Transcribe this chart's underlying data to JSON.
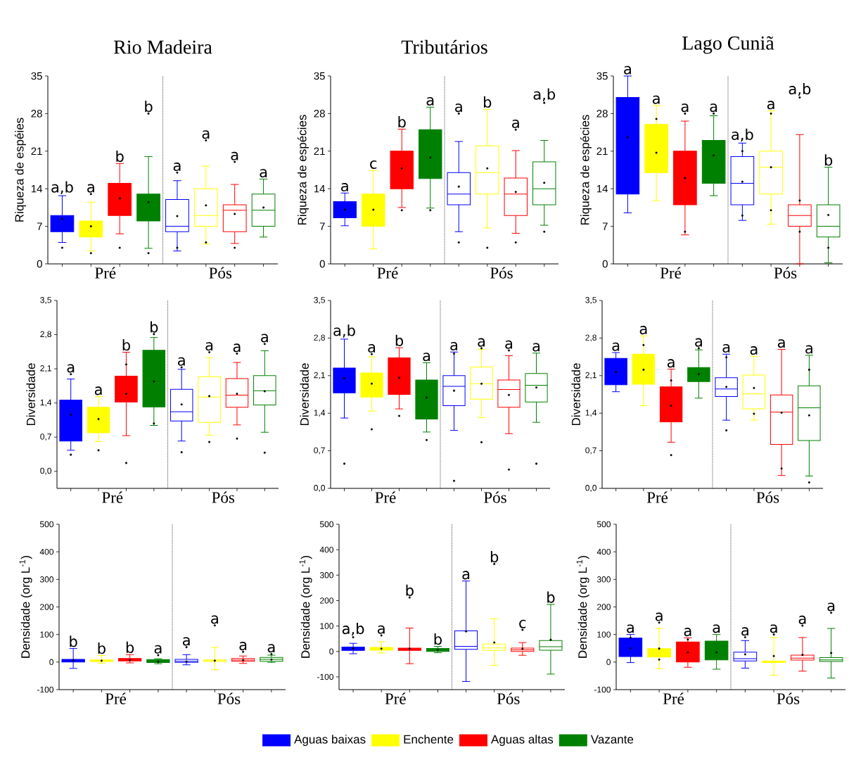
{
  "chart_data": [
    {
      "type": "box",
      "title": "Rio Madeira",
      "ylabel": "Riqueza de espéies",
      "categories": [
        "Pré",
        "Pós"
      ],
      "ylim": [
        0,
        35
      ],
      "yticks": [
        0,
        7,
        14,
        21,
        28,
        35
      ],
      "series": [
        {
          "color": "#0000ff",
          "value_labels": [
            "a,b",
            "a"
          ],
          "boxes": [
            {
              "low": 4.0,
              "q1": 6.0,
              "median": 8.0,
              "q3": 9.0,
              "high": 12.7,
              "mean": 8.4,
              "outliers": [
                3.0
              ]
            },
            {
              "low": 2.4,
              "q1": 6.0,
              "median": 7.0,
              "q3": 12.0,
              "high": 15.5,
              "mean": 8.9,
              "outliers": [
                17.0,
                3.0
              ]
            }
          ]
        },
        {
          "color": "#ffff00",
          "value_labels": [
            "a",
            "a"
          ],
          "boxes": [
            {
              "low": 2.4,
              "q1": 5.0,
              "median": 7.0,
              "q3": 8.0,
              "high": 11.5,
              "mean": 7.0,
              "outliers": [
                13.0,
                2.0
              ]
            },
            {
              "low": 3.7,
              "q1": 7.0,
              "median": 9.0,
              "q3": 14.0,
              "high": 18.2,
              "mean": 10.9,
              "outliers": [
                23.0,
                4.0
              ]
            }
          ]
        },
        {
          "color": "#ff0000",
          "value_labels": [
            "b",
            "a"
          ],
          "boxes": [
            {
              "low": 5.6,
              "q1": 9.0,
              "median": 12.0,
              "q3": 15.0,
              "high": 18.7,
              "mean": 12.2,
              "outliers": [
                3.0
              ]
            },
            {
              "low": 3.8,
              "q1": 6.0,
              "median": 10.0,
              "q3": 11.0,
              "high": 14.8,
              "mean": 9.3,
              "outliers": [
                19.0,
                3.0
              ]
            }
          ]
        },
        {
          "color": "#008000",
          "value_labels": [
            "b",
            "a"
          ],
          "boxes": [
            {
              "low": 2.9,
              "q1": 8.0,
              "median": 11.0,
              "q3": 13.0,
              "high": 20.0,
              "mean": 11.5,
              "outliers": [
                28.0,
                2.0
              ]
            },
            {
              "low": 5.0,
              "q1": 7.0,
              "median": 10.0,
              "q3": 13.0,
              "high": 15.8,
              "mean": 10.5
            }
          ]
        }
      ]
    },
    {
      "type": "box",
      "title": "Tributários",
      "ylabel": "Riqueza de espécies",
      "categories": [
        "Pré",
        "Pós"
      ],
      "ylim": [
        0,
        35
      ],
      "yticks": [
        0,
        7,
        14,
        21,
        28,
        35
      ],
      "series": [
        {
          "color": "#0000ff",
          "value_labels": [
            "a",
            "a"
          ],
          "boxes": [
            {
              "low": 7.1,
              "q1": 8.6,
              "median": 10.1,
              "q3": 11.6,
              "high": 13.2,
              "mean": 10.1
            },
            {
              "low": 6.0,
              "q1": 11.0,
              "median": 13.0,
              "q3": 17.0,
              "high": 22.8,
              "mean": 14.4,
              "outliers": [
                28.0,
                4.0
              ]
            }
          ]
        },
        {
          "color": "#ffff00",
          "value_labels": [
            "c",
            "b"
          ],
          "boxes": [
            {
              "low": 2.8,
              "q1": 7.0,
              "median": 10.0,
              "q3": 13.0,
              "high": 17.4,
              "mean": 10.1
            },
            {
              "low": 6.7,
              "q1": 13.0,
              "median": 17.0,
              "q3": 22.0,
              "high": 28.8,
              "mean": 17.8,
              "outliers": [
                3.0
              ]
            }
          ]
        },
        {
          "color": "#ff0000",
          "value_labels": [
            "b",
            "a"
          ],
          "boxes": [
            {
              "low": 10.5,
              "q1": 14.0,
              "median": 17.8,
              "q3": 21.0,
              "high": 25.1,
              "mean": 17.8,
              "outliers": [
                10.0
              ]
            },
            {
              "low": 5.7,
              "q1": 9.0,
              "median": 13.0,
              "q3": 16.0,
              "high": 21.1,
              "mean": 13.4,
              "outliers": [
                25.0,
                4.0
              ]
            }
          ]
        },
        {
          "color": "#008000",
          "value_labels": [
            "a",
            "a,b"
          ],
          "boxes": [
            {
              "low": 10.4,
              "q1": 15.9,
              "median": 20.0,
              "q3": 25.0,
              "high": 29.2,
              "mean": 19.8,
              "outliers": [
                10.0
              ]
            },
            {
              "low": 7.2,
              "q1": 11.0,
              "median": 14.0,
              "q3": 19.0,
              "high": 23.0,
              "mean": 15.1,
              "outliers": [
                30.0,
                6.0
              ]
            }
          ]
        }
      ]
    },
    {
      "type": "box",
      "title": "Lago Cuniã",
      "ylabel": "Riqueza de espécies",
      "categories": [
        "Pré",
        "Pós"
      ],
      "ylim": [
        0,
        35
      ],
      "yticks": [
        0,
        7,
        14,
        21,
        28,
        35
      ],
      "series": [
        {
          "color": "#0000ff",
          "value_labels": [
            "a",
            "a,b"
          ],
          "boxes": [
            {
              "low": 9.5,
              "q1": 13.0,
              "median": 23.6,
              "q3": 31.0,
              "high": 35.0,
              "mean": 23.6
            },
            {
              "low": 8.1,
              "q1": 11.0,
              "median": 15.0,
              "q3": 20.0,
              "high": 22.5,
              "mean": 15.3,
              "outliers": [
                21.0,
                9.0
              ]
            }
          ]
        },
        {
          "color": "#ffff00",
          "value_labels": [
            "a",
            "a"
          ],
          "boxes": [
            {
              "low": 11.8,
              "q1": 17.0,
              "median": 20.7,
              "q3": 26.0,
              "high": 29.5,
              "mean": 20.7,
              "outliers": [
                27.0
              ]
            },
            {
              "low": 7.4,
              "q1": 13.0,
              "median": 18.0,
              "q3": 21.0,
              "high": 28.5,
              "mean": 18.0,
              "outliers": [
                28.0,
                10.0
              ]
            }
          ]
        },
        {
          "color": "#ff0000",
          "value_labels": [
            "a",
            "a,b"
          ],
          "boxes": [
            {
              "low": 5.4,
              "q1": 11.0,
              "median": 16.0,
              "q3": 21.0,
              "high": 26.6,
              "mean": 16.0,
              "outliers": [
                28.0,
                6.0
              ]
            },
            {
              "low": 0.0,
              "q1": 7.0,
              "median": 9.0,
              "q3": 11.0,
              "high": 24.1,
              "mean": 11.8,
              "outliers": [
                31.0,
                6.0
              ]
            }
          ]
        },
        {
          "color": "#008000",
          "value_labels": [
            "a",
            "b"
          ],
          "boxes": [
            {
              "low": 12.7,
              "q1": 15.0,
              "median": 20.2,
              "q3": 23.0,
              "high": 27.6,
              "mean": 20.2,
              "outliers": [
                28.0
              ]
            },
            {
              "low": 0.2,
              "q1": 5.0,
              "median": 7.0,
              "q3": 11.0,
              "high": 18.0,
              "mean": 9.1,
              "outliers": [
                3.0
              ]
            }
          ]
        }
      ]
    },
    {
      "type": "box",
      "ylabel": "Diversidade",
      "categories": [
        "Pré",
        "Pós"
      ],
      "ylim": [
        -0.35,
        3.5
      ],
      "yticks": [
        {
          "value": 0,
          "label": "0,0"
        },
        {
          "value": 0.7,
          "label": "0,7"
        },
        {
          "value": 1.4,
          "label": "1,4"
        },
        {
          "value": 2.1,
          "label": "2,1"
        },
        {
          "value": 2.8,
          "label": "2,8"
        },
        {
          "value": 3.5,
          "label": "3,5"
        }
      ],
      "series": [
        {
          "color": "#0000ff",
          "value_labels": [
            "a",
            "a"
          ],
          "boxes": [
            {
              "low": 0.43,
              "q1": 0.62,
              "median": 1.16,
              "q3": 1.46,
              "high": 1.89,
              "mean": 1.16,
              "outliers": [
                1.99,
                0.34
              ]
            },
            {
              "low": 0.62,
              "q1": 1.03,
              "median": 1.22,
              "q3": 1.68,
              "high": 2.09,
              "mean": 1.37,
              "outliers": [
                2.13,
                0.39
              ]
            }
          ]
        },
        {
          "color": "#ffff00",
          "value_labels": [
            "a",
            "a"
          ],
          "boxes": [
            {
              "low": 0.61,
              "q1": 0.79,
              "median": 1.07,
              "q3": 1.31,
              "high": 1.53,
              "mean": 1.07,
              "outliers": [
                0.43
              ]
            },
            {
              "low": 0.74,
              "q1": 1.0,
              "median": 1.52,
              "q3": 1.94,
              "high": 2.33,
              "mean": 1.54,
              "outliers": [
                2.44,
                0.6
              ]
            }
          ]
        },
        {
          "color": "#ff0000",
          "value_labels": [
            "b",
            "a"
          ],
          "boxes": [
            {
              "low": 0.73,
              "q1": 1.42,
              "median": 1.59,
              "q3": 1.95,
              "high": 2.44,
              "mean": 1.59,
              "outliers": [
                2.19,
                0.17
              ]
            },
            {
              "low": 0.95,
              "q1": 1.31,
              "median": 1.56,
              "q3": 1.9,
              "high": 2.23,
              "mean": 1.59,
              "outliers": [
                2.41,
                0.67
              ]
            }
          ]
        },
        {
          "color": "#008000",
          "value_labels": [
            "b",
            "a"
          ],
          "boxes": [
            {
              "low": 0.94,
              "q1": 1.32,
              "median": 1.84,
              "q3": 2.48,
              "high": 2.74,
              "mean": 1.84,
              "outliers": [
                2.81,
                0.98
              ]
            },
            {
              "low": 0.8,
              "q1": 1.36,
              "median": 1.65,
              "q3": 1.96,
              "high": 2.47,
              "mean": 1.64,
              "outliers": [
                2.61,
                0.38
              ]
            }
          ]
        }
      ]
    },
    {
      "type": "box",
      "ylabel": "Diversidade",
      "categories": [
        "Pré",
        "Pós"
      ],
      "ylim": [
        0,
        3.5
      ],
      "yticks": [
        {
          "value": 0,
          "label": "0,0"
        },
        {
          "value": 0.7,
          "label": "0,7"
        },
        {
          "value": 1.4,
          "label": "1,4"
        },
        {
          "value": 2.1,
          "label": "2,1"
        },
        {
          "value": 2.8,
          "label": "2,8"
        },
        {
          "value": 3.5,
          "label": "3,5"
        }
      ],
      "series": [
        {
          "color": "#0000ff",
          "value_labels": [
            "a,b",
            "a"
          ],
          "boxes": [
            {
              "low": 1.31,
              "q1": 1.78,
              "median": 2.05,
              "q3": 2.24,
              "high": 2.78,
              "mean": 2.05,
              "outliers": [
                0.46
              ]
            },
            {
              "low": 1.08,
              "q1": 1.54,
              "median": 1.9,
              "q3": 2.1,
              "high": 2.54,
              "mean": 1.82,
              "outliers": [
                2.51,
                0.14
              ]
            }
          ]
        },
        {
          "color": "#ffff00",
          "value_labels": [
            "a",
            "a"
          ],
          "boxes": [
            {
              "low": 1.44,
              "q1": 1.7,
              "median": 1.95,
              "q3": 2.15,
              "high": 2.45,
              "mean": 1.95,
              "outliers": [
                2.5,
                1.1
              ]
            },
            {
              "low": 1.32,
              "q1": 1.66,
              "median": 1.95,
              "q3": 2.26,
              "high": 2.59,
              "mean": 1.95,
              "outliers": [
                2.61,
                0.86
              ]
            }
          ]
        },
        {
          "color": "#ff0000",
          "value_labels": [
            "b",
            "a"
          ],
          "boxes": [
            {
              "low": 1.48,
              "q1": 1.75,
              "median": 2.06,
              "q3": 2.43,
              "high": 2.62,
              "mean": 2.06,
              "outliers": [
                1.35
              ]
            },
            {
              "low": 1.02,
              "q1": 1.51,
              "median": 1.84,
              "q3": 2.02,
              "high": 2.47,
              "mean": 1.74,
              "outliers": [
                2.57,
                0.35
              ]
            }
          ]
        },
        {
          "color": "#008000",
          "value_labels": [
            "a",
            "a"
          ],
          "boxes": [
            {
              "low": 1.05,
              "q1": 1.29,
              "median": 1.69,
              "q3": 2.02,
              "high": 2.34,
              "mean": 1.69,
              "outliers": [
                0.9
              ]
            },
            {
              "low": 1.23,
              "q1": 1.61,
              "median": 1.92,
              "q3": 2.14,
              "high": 2.52,
              "mean": 1.88,
              "outliers": [
                0.46
              ]
            }
          ]
        }
      ]
    },
    {
      "type": "box",
      "ylabel": "Diversidade",
      "categories": [
        "Pré",
        "Pós"
      ],
      "ylim": [
        0,
        3.5
      ],
      "yticks": [
        {
          "value": 0,
          "label": "0,0"
        },
        {
          "value": 0.7,
          "label": "0,7"
        },
        {
          "value": 1.4,
          "label": "1,4"
        },
        {
          "value": 2.1,
          "label": "2,1"
        },
        {
          "value": 2.8,
          "label": "2,8"
        },
        {
          "value": 3.5,
          "label": "3,5"
        }
      ],
      "series": [
        {
          "color": "#0000ff",
          "value_labels": [
            "a",
            "a"
          ],
          "boxes": [
            {
              "low": 1.8,
              "q1": 1.93,
              "median": 2.17,
              "q3": 2.42,
              "high": 2.53,
              "mean": 2.17
            },
            {
              "low": 1.27,
              "q1": 1.71,
              "median": 1.85,
              "q3": 2.06,
              "high": 2.5,
              "mean": 1.89,
              "outliers": [
                2.44,
                1.08
              ]
            }
          ]
        },
        {
          "color": "#ffff00",
          "value_labels": [
            "a",
            "a"
          ],
          "boxes": [
            {
              "low": 1.54,
              "q1": 1.94,
              "median": 2.21,
              "q3": 2.5,
              "high": 2.84,
              "mean": 2.21,
              "outliers": [
                2.67
              ]
            },
            {
              "low": 1.27,
              "q1": 1.48,
              "median": 1.76,
              "q3": 2.11,
              "high": 2.46,
              "mean": 1.87,
              "outliers": [
                1.39
              ]
            }
          ]
        },
        {
          "color": "#ff0000",
          "value_labels": [
            "a",
            "a"
          ],
          "boxes": [
            {
              "low": 0.86,
              "q1": 1.24,
              "median": 1.54,
              "q3": 1.89,
              "high": 2.22,
              "mean": 1.54,
              "outliers": [
                2.01,
                0.62
              ]
            },
            {
              "low": 0.24,
              "q1": 0.82,
              "median": 1.42,
              "q3": 1.74,
              "high": 2.59,
              "mean": 1.41,
              "outliers": [
                0.37
              ]
            }
          ]
        },
        {
          "color": "#008000",
          "value_labels": [
            "a",
            "a"
          ],
          "boxes": [
            {
              "low": 1.68,
              "q1": 1.99,
              "median": 2.13,
              "q3": 2.25,
              "high": 2.58,
              "mean": 2.13,
              "outliers": [
                2.61
              ]
            },
            {
              "low": 0.23,
              "q1": 0.89,
              "median": 1.5,
              "q3": 1.91,
              "high": 2.48,
              "mean": 1.36,
              "outliers": [
                2.21,
                0.11
              ]
            }
          ]
        }
      ]
    },
    {
      "type": "box",
      "ylabel": "Densidade (org L$^{-1}$)",
      "categories": [
        "Pré",
        "Pós"
      ],
      "ylim": [
        -100,
        500
      ],
      "yticks": [
        -100,
        0,
        100,
        200,
        300,
        400,
        500
      ],
      "series": [
        {
          "color": "#0000ff",
          "value_labels": [
            "b",
            "a"
          ],
          "boxes": [
            {
              "low": -23,
              "q1": 0,
              "median": 5,
              "q3": 10,
              "high": 49,
              "mean": 6
            },
            {
              "low": -10,
              "q1": -1,
              "median": 3,
              "q3": 10,
              "high": 27,
              "mean": 2,
              "outliers": [
                54
              ]
            }
          ]
        },
        {
          "color": "#ffff00",
          "value_labels": [
            "b",
            "a"
          ],
          "boxes": [
            {
              "low": -4,
              "q1": 2,
              "median": 5,
              "q3": 8,
              "high": 24,
              "mean": 5
            },
            {
              "low": -28,
              "q1": 2,
              "median": 5,
              "q3": 8,
              "high": 53,
              "mean": 5,
              "outliers": [
                133
              ]
            }
          ]
        },
        {
          "color": "#ff0000",
          "value_labels": [
            "b",
            "a"
          ],
          "boxes": [
            {
              "low": -3,
              "q1": 4,
              "median": 7,
              "q3": 13,
              "high": 27,
              "mean": 7
            },
            {
              "low": -5,
              "q1": 3,
              "median": 7,
              "q3": 13,
              "high": 22,
              "mean": 7,
              "outliers": [
                37
              ]
            }
          ]
        },
        {
          "color": "#008000",
          "value_labels": [
            "a",
            "a"
          ],
          "boxes": [
            {
              "low": -6,
              "q1": -2,
              "median": 1,
              "q3": 9,
              "high": 12,
              "mean": 1,
              "outliers": [
                25
              ]
            },
            {
              "low": -1,
              "q1": 3,
              "median": 10,
              "q3": 17,
              "high": 25,
              "mean": 9,
              "outliers": [
                29
              ]
            }
          ]
        }
      ]
    },
    {
      "type": "box",
      "ylabel": "Densidade (org L$^{-1}$)",
      "categories": [
        "Pré",
        "Pós"
      ],
      "ylim": [
        -150,
        500
      ],
      "yticks": [
        -100,
        0,
        100,
        200,
        300,
        400,
        500
      ],
      "legend": "bottom",
      "series": [
        {
          "name": "Aguas baixas",
          "color": "#0000ff",
          "value_labels": [
            "a,b",
            "a"
          ],
          "boxes": [
            {
              "low": -9,
              "q1": 4,
              "median": 12,
              "q3": 17,
              "high": 32,
              "mean": 12,
              "outliers": [
                56
              ]
            },
            {
              "low": -118,
              "q1": 8,
              "median": 20,
              "q3": 81,
              "high": 277,
              "mean": 79
            }
          ]
        },
        {
          "name": "Enchente",
          "color": "#ffff00",
          "value_labels": [
            "a",
            "b"
          ],
          "boxes": [
            {
              "low": -6,
              "q1": 5,
              "median": 11,
              "q3": 16,
              "high": 38,
              "mean": 11,
              "outliers": [
                63
              ]
            },
            {
              "low": -55,
              "q1": 4,
              "median": 14,
              "q3": 29,
              "high": 129,
              "mean": 35,
              "outliers": [
                344
              ]
            }
          ]
        },
        {
          "name": "Aguas altas",
          "color": "#ff0000",
          "value_labels": [
            "b",
            "c"
          ],
          "boxes": [
            {
              "low": -48,
              "q1": 4,
              "median": 11,
              "q3": 13,
              "high": 92,
              "mean": 11,
              "outliers": [
                212
              ]
            },
            {
              "low": -15,
              "q1": 0,
              "median": 6,
              "q3": 13,
              "high": 35,
              "mean": 11,
              "outliers": [
                85
              ]
            }
          ]
        },
        {
          "name": "Vazante",
          "color": "#008000",
          "value_labels": [
            "b",
            "b"
          ],
          "boxes": [
            {
              "low": -5,
              "q1": 0,
              "median": 6,
              "q3": 12,
              "high": 20,
              "mean": 6
            },
            {
              "low": -89,
              "q1": 5,
              "median": 19,
              "q3": 43,
              "high": 185,
              "mean": 46
            }
          ]
        }
      ]
    },
    {
      "type": "box",
      "ylabel": "Densidade (org L$^{-1}$)",
      "categories": [
        "Pré",
        "Pós"
      ],
      "ylim": [
        -100,
        500
      ],
      "yticks": [
        -100,
        0,
        100,
        200,
        300,
        400,
        500
      ],
      "series": [
        {
          "color": "#0000ff",
          "value_labels": [
            "a",
            "a"
          ],
          "boxes": [
            {
              "low": -2,
              "q1": 20,
              "median": 50,
              "q3": 87,
              "high": 100,
              "mean": 50,
              "outliers": [
                88
              ]
            },
            {
              "low": -22,
              "q1": 4,
              "median": 12,
              "q3": 36,
              "high": 78,
              "mean": 28,
              "outliers": [
                90
              ]
            }
          ]
        },
        {
          "color": "#ffff00",
          "value_labels": [
            "a",
            "a"
          ],
          "boxes": [
            {
              "low": -24,
              "q1": 18,
              "median": 35,
              "q3": 49,
              "high": 122,
              "mean": 49,
              "outliers": [
                143,
                9
              ]
            },
            {
              "low": -48,
              "q1": -2,
              "median": 1,
              "q3": 4,
              "high": 89,
              "mean": 22,
              "outliers": [
                100
              ]
            }
          ]
        },
        {
          "color": "#ff0000",
          "value_labels": [
            "a",
            "a"
          ],
          "boxes": [
            {
              "low": -19,
              "q1": 0,
              "median": 35,
              "q3": 73,
              "high": 88,
              "mean": 35,
              "outliers": [
                82
              ]
            },
            {
              "low": -33,
              "q1": 7,
              "median": 14,
              "q3": 25,
              "high": 89,
              "mean": 26,
              "outliers": [
                132
              ]
            }
          ]
        },
        {
          "color": "#008000",
          "value_labels": [
            "a",
            "a"
          ],
          "boxes": [
            {
              "low": -26,
              "q1": 8,
              "median": 35,
              "q3": 76,
              "high": 100,
              "mean": 35
            },
            {
              "low": -58,
              "q1": 2,
              "median": 8,
              "q3": 16,
              "high": 122,
              "mean": 33,
              "outliers": [
                179
              ]
            }
          ]
        }
      ]
    }
  ]
}
